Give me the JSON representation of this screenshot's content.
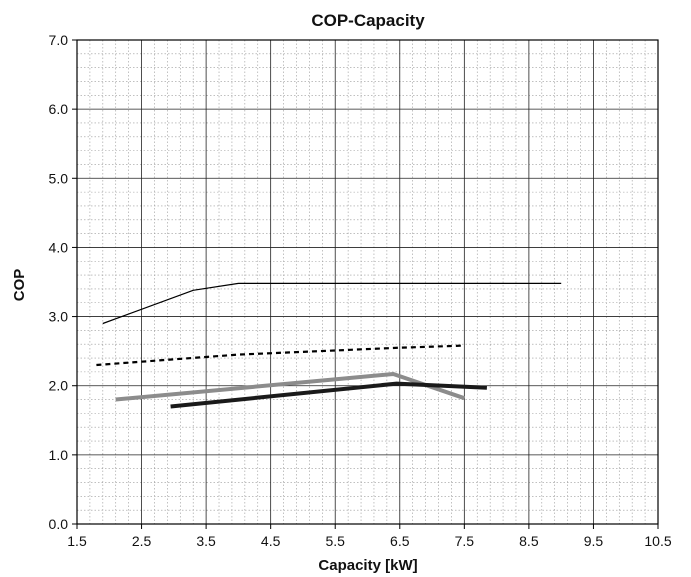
{
  "chart_data": {
    "type": "line",
    "title": "COP-Capacity",
    "xlabel": "Capacity [kW]",
    "ylabel": "COP",
    "xlim": [
      1.5,
      10.5
    ],
    "ylim": [
      0.0,
      7.0
    ],
    "x_ticks": [
      "1.5",
      "2.5",
      "3.5",
      "4.5",
      "5.5",
      "6.5",
      "7.5",
      "8.5",
      "9.5",
      "10.5"
    ],
    "y_ticks": [
      "0.0",
      "1.0",
      "2.0",
      "3.0",
      "4.0",
      "5.0",
      "6.0",
      "7.0"
    ],
    "grid": "major solid, minor dotted",
    "legend": "none",
    "series": [
      {
        "style": "thin-solid",
        "color": "#000000",
        "x": [
          1.9,
          3.3,
          4.0,
          9.0
        ],
        "y": [
          2.9,
          3.38,
          3.48,
          3.48
        ]
      },
      {
        "style": "dashed",
        "color": "#000000",
        "x": [
          1.8,
          4.0,
          6.5,
          7.5
        ],
        "y": [
          2.3,
          2.45,
          2.55,
          2.58
        ]
      },
      {
        "style": "thick-gray",
        "color": "#8c8c8c",
        "x": [
          2.1,
          6.4,
          7.5
        ],
        "y": [
          1.8,
          2.17,
          1.82
        ]
      },
      {
        "style": "thick-black",
        "color": "#1a1a1a",
        "x": [
          2.95,
          6.45,
          7.85
        ],
        "y": [
          1.7,
          2.03,
          1.97
        ]
      }
    ]
  }
}
